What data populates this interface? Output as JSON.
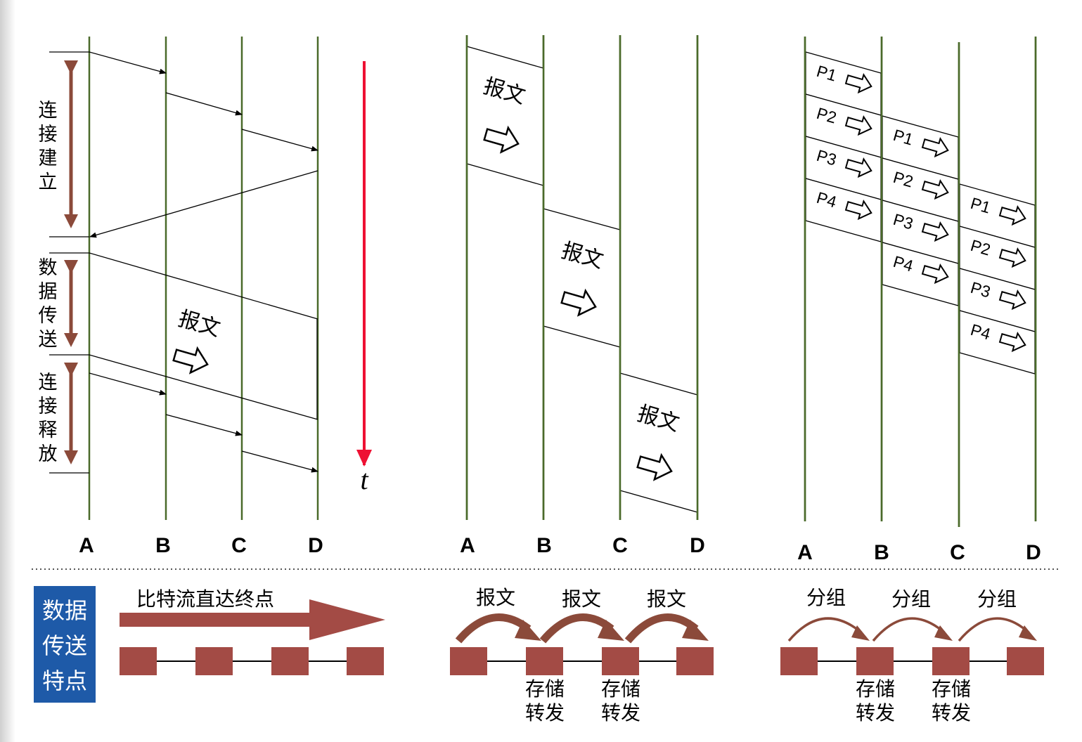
{
  "nodes": [
    "A",
    "B",
    "C",
    "D"
  ],
  "circuit": {
    "phases": [
      "连接建立",
      "数据传送",
      "连接释放"
    ],
    "message_label": "报文",
    "time_label": "t"
  },
  "message_switching": {
    "message_label": "报文"
  },
  "packet_switching": {
    "packets": [
      "P1",
      "P2",
      "P3",
      "P4"
    ]
  },
  "bottom": {
    "title": "数据传送特点",
    "circuit_text": "比特流直达终点",
    "message_hop_label": "报文",
    "packet_hop_label": "分组",
    "store_forward": "存储转发"
  },
  "colors": {
    "line": "#4a6a2a",
    "brown": "#8b4a3a",
    "node_box": "#a34b45",
    "time_arrow": "#ee1133",
    "title_box": "#1e5aa8"
  }
}
